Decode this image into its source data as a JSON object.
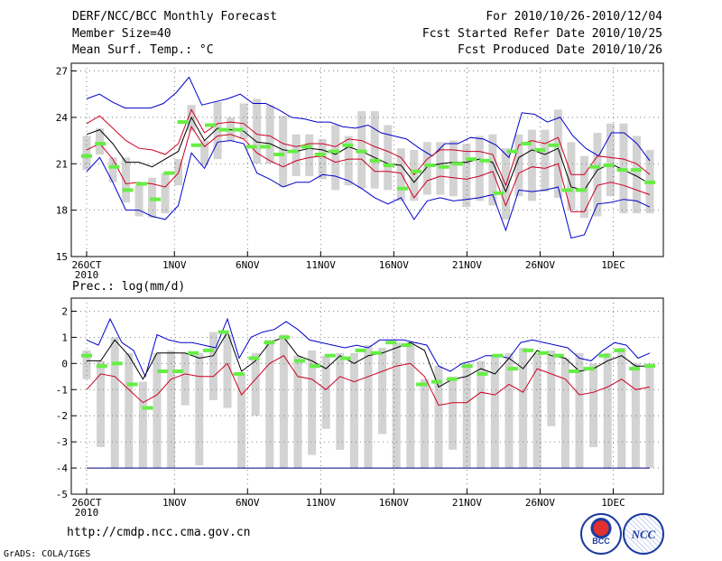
{
  "header": {
    "title": "DERF/NCC/BCC Monthly Forecast",
    "member_size": "Member Size=40",
    "variable": "Mean Surf. Temp.: °C",
    "period": "For 2010/10/26-2010/12/04",
    "start_date": "Fcst Started Refer Date 2010/10/25",
    "produced_date": "Fcst Produced Date 2010/10/26"
  },
  "footer": {
    "url": "http://cmdp.ncc.cma.gov.cn",
    "credit": "GrADS: COLA/IGES",
    "logo1_text": "BCC",
    "logo2_text": "NCC"
  },
  "colors": {
    "median": "#000000",
    "inner": "#cc0022",
    "outer": "#0000cc",
    "bar": "#d3d3d3",
    "obs": "#66ee44",
    "floor": "#000080"
  },
  "chart_data": [
    {
      "type": "line",
      "title": "Mean Surf. Temp.: °C",
      "x_ticks": [
        "26OCT",
        "1NOV",
        "6NOV",
        "11NOV",
        "16NOV",
        "21NOV",
        "26NOV",
        "1DEC"
      ],
      "x_tick_days": [
        1,
        7,
        12,
        17,
        22,
        27,
        32,
        37
      ],
      "x_sublabel": "2010",
      "ylim": [
        15,
        27.5
      ],
      "yticks": [
        15,
        18,
        21,
        24,
        27
      ],
      "days": 40,
      "series": [
        {
          "name": "upper-envelope",
          "values": [
            25.2,
            25.5,
            25.0,
            24.6,
            24.6,
            24.6,
            24.9,
            25.6,
            26.6,
            24.8,
            25.0,
            25.2,
            25.5,
            24.9,
            24.9,
            24.5,
            24.0,
            23.9,
            23.7,
            23.7,
            23.4,
            23.3,
            23.5,
            23.0,
            22.8,
            22.6,
            22.0,
            21.5,
            22.3,
            22.3,
            22.7,
            22.6,
            22.2,
            21.4,
            24.3,
            24.2,
            23.7,
            24.0,
            22.8,
            22.0,
            21.5,
            23.0,
            23.0,
            22.3,
            21.2
          ]
        },
        {
          "name": "inner-upper",
          "values": [
            23.6,
            24.1,
            23.3,
            22.5,
            22.0,
            21.9,
            21.6,
            22.3,
            24.5,
            23.0,
            23.6,
            23.7,
            23.6,
            22.9,
            22.8,
            22.3,
            22.1,
            22.3,
            22.3,
            22.1,
            22.6,
            22.5,
            22.1,
            21.8,
            21.4,
            20.3,
            21.3,
            21.9,
            21.9,
            21.8,
            21.8,
            21.6,
            19.6,
            22.2,
            22.5,
            22.3,
            22.7,
            20.3,
            20.3,
            21.5,
            21.4,
            21.3,
            21.0,
            20.3
          ]
        },
        {
          "name": "median",
          "values": [
            22.9,
            23.2,
            22.3,
            21.1,
            21.1,
            20.8,
            21.3,
            21.8,
            24.0,
            22.5,
            23.3,
            23.2,
            23.1,
            22.4,
            22.3,
            21.9,
            21.8,
            22.0,
            21.9,
            21.6,
            22.1,
            21.8,
            21.4,
            21.0,
            20.9,
            19.8,
            20.8,
            21.0,
            21.1,
            21.1,
            21.3,
            21.1,
            19.2,
            21.4,
            21.9,
            21.6,
            22.0,
            19.5,
            19.3,
            20.6,
            21.0,
            20.6,
            20.2,
            19.7
          ]
        },
        {
          "name": "inner-lower",
          "values": [
            21.9,
            22.3,
            21.3,
            19.7,
            19.8,
            19.7,
            19.5,
            20.4,
            23.4,
            22.1,
            22.8,
            22.9,
            22.6,
            21.7,
            21.2,
            20.8,
            21.2,
            21.4,
            21.5,
            21.1,
            21.3,
            21.3,
            20.5,
            20.5,
            20.4,
            18.8,
            19.9,
            20.2,
            20.1,
            20.0,
            20.2,
            20.5,
            18.3,
            20.4,
            20.8,
            20.7,
            21.0,
            17.9,
            17.9,
            19.6,
            19.8,
            19.6,
            19.3,
            19.0
          ]
        },
        {
          "name": "lower-envelope",
          "values": [
            20.5,
            21.4,
            19.8,
            18.0,
            18.0,
            17.6,
            17.4,
            18.3,
            21.7,
            20.7,
            22.4,
            22.5,
            22.3,
            20.4,
            20.0,
            19.5,
            19.8,
            19.8,
            20.3,
            20.2,
            19.9,
            19.4,
            18.8,
            18.4,
            18.8,
            17.4,
            18.6,
            18.8,
            18.6,
            18.7,
            18.8,
            19.0,
            16.7,
            19.3,
            19.2,
            19.3,
            19.5,
            16.2,
            16.4,
            18.4,
            18.5,
            18.7,
            18.6,
            18.2
          ]
        }
      ],
      "bars": [
        [
          20.6,
          22.8
        ],
        [
          21.6,
          23.3
        ],
        [
          19.8,
          21.4
        ],
        [
          18.5,
          21.4
        ],
        [
          17.6,
          19.6
        ],
        [
          17.5,
          20.1
        ],
        [
          17.8,
          20.4
        ],
        [
          19.6,
          21.3
        ],
        [
          23.1,
          24.8
        ],
        [
          20.9,
          22.5
        ],
        [
          21.3,
          25.0
        ],
        [
          22.5,
          24.0
        ],
        [
          22.6,
          24.9
        ],
        [
          21.0,
          25.2
        ],
        [
          21.0,
          24.8
        ],
        [
          19.5,
          24.1
        ],
        [
          20.2,
          22.9
        ],
        [
          20.2,
          22.9
        ],
        [
          20.0,
          22.6
        ],
        [
          19.3,
          23.5
        ],
        [
          19.6,
          22.8
        ],
        [
          19.4,
          24.4
        ],
        [
          19.4,
          24.4
        ],
        [
          19.3,
          23.5
        ],
        [
          18.6,
          22.0
        ],
        [
          18.6,
          21.9
        ],
        [
          19.0,
          22.4
        ],
        [
          19.0,
          22.4
        ],
        [
          18.9,
          22.5
        ],
        [
          18.2,
          22.3
        ],
        [
          18.6,
          22.8
        ],
        [
          18.3,
          22.9
        ],
        [
          17.4,
          22.0
        ],
        [
          18.9,
          22.9
        ],
        [
          18.6,
          23.2
        ],
        [
          19.2,
          23.2
        ],
        [
          18.8,
          24.5
        ],
        [
          18.0,
          22.4
        ],
        [
          17.5,
          21.5
        ],
        [
          17.6,
          23.0
        ],
        [
          18.9,
          23.6
        ],
        [
          17.8,
          23.6
        ],
        [
          17.8,
          22.8
        ],
        [
          17.8,
          21.9
        ]
      ],
      "observed": [
        21.5,
        22.3,
        20.8,
        19.3,
        19.7,
        18.7,
        20.4,
        23.7,
        22.2,
        23.5,
        23.2,
        23.2,
        22.1,
        22.1,
        21.6,
        21.8,
        22.1,
        21.6,
        21.8,
        22.2,
        21.8,
        21.2,
        20.9,
        19.4,
        20.5,
        20.9,
        20.8,
        21.0,
        21.3,
        21.2,
        19.1,
        21.8,
        22.3,
        21.9,
        22.2,
        19.3,
        19.3,
        20.8,
        20.9,
        20.6,
        20.6,
        19.8
      ]
    },
    {
      "type": "line",
      "title": "Prec.: log(mm/d)",
      "x_ticks": [
        "26OCT",
        "1NOV",
        "6NOV",
        "11NOV",
        "16NOV",
        "21NOV",
        "26NOV",
        "1DEC"
      ],
      "x_tick_days": [
        1,
        7,
        12,
        17,
        22,
        27,
        32,
        37
      ],
      "x_sublabel": "2010",
      "ylim": [
        -5,
        2.5
      ],
      "yticks": [
        -5,
        -4,
        -3,
        -2,
        -1,
        0,
        1,
        2
      ],
      "floor_value": -4,
      "series": [
        {
          "name": "upper-envelope",
          "values": [
            0.9,
            0.7,
            1.7,
            0.8,
            0.5,
            -0.5,
            1.1,
            0.9,
            0.8,
            0.8,
            0.7,
            0.6,
            1.7,
            0.2,
            1.0,
            1.2,
            1.3,
            1.6,
            1.3,
            0.9,
            0.8,
            0.7,
            0.6,
            0.7,
            0.6,
            0.9,
            0.9,
            0.9,
            0.8,
            0.7,
            -0.1,
            -0.3,
            0.0,
            0.1,
            0.3,
            0.3,
            0.2,
            0.8,
            0.9,
            0.8,
            0.7,
            0.6,
            0.2,
            0.1,
            0.5,
            0.8,
            0.7,
            0.2,
            0.4
          ]
        },
        {
          "name": "median",
          "values": [
            0.1,
            0.1,
            0.9,
            0.3,
            -0.6,
            0.4,
            0.4,
            0.4,
            0.2,
            0.3,
            1.2,
            -0.3,
            0.1,
            0.8,
            1.0,
            0.3,
            0.1,
            -0.2,
            0.3,
            0.0,
            0.3,
            0.4,
            0.6,
            0.8,
            0.5,
            -0.9,
            -0.6,
            -0.5,
            -0.2,
            -0.4,
            0.2,
            -0.2,
            0.5,
            0.3,
            0.2,
            -0.3,
            -0.2,
            0.1,
            0.3,
            -0.1,
            -0.1
          ]
        },
        {
          "name": "inner-lower",
          "values": [
            -1.0,
            -0.4,
            -0.5,
            -1.0,
            -1.5,
            -1.2,
            -0.6,
            -0.4,
            -0.5,
            -0.5,
            0.0,
            -1.2,
            -0.6,
            0.0,
            0.3,
            -0.5,
            -0.6,
            -1.0,
            -0.5,
            -0.7,
            -0.5,
            -0.3,
            -0.1,
            0.0,
            -0.5,
            -1.6,
            -1.5,
            -1.5,
            -1.1,
            -1.2,
            -0.8,
            -1.1,
            -0.2,
            -0.4,
            -0.6,
            -1.2,
            -1.1,
            -0.9,
            -0.6,
            -1.0,
            -0.9
          ]
        }
      ],
      "bars": [
        [
          -0.6,
          0.5
        ],
        [
          -3.2,
          0.1
        ],
        [
          -4.0,
          1.0
        ],
        [
          -4.0,
          0.4
        ],
        [
          -4.0,
          -0.7
        ],
        [
          -4.0,
          0.4
        ],
        [
          -4.0,
          0.5
        ],
        [
          -1.6,
          0.4
        ],
        [
          -3.9,
          0.4
        ],
        [
          -1.4,
          1.2
        ],
        [
          -1.7,
          1.1
        ],
        [
          -4.0,
          -0.4
        ],
        [
          -2.0,
          0.4
        ],
        [
          -4.0,
          0.9
        ],
        [
          -4.0,
          1.1
        ],
        [
          -4.0,
          0.3
        ],
        [
          -3.5,
          0.5
        ],
        [
          -2.5,
          0.3
        ],
        [
          -3.3,
          0.4
        ],
        [
          -4.0,
          0.4
        ],
        [
          -4.0,
          0.7
        ],
        [
          -2.7,
          0.6
        ],
        [
          -4.0,
          0.8
        ],
        [
          -4.0,
          0.8
        ],
        [
          -4.0,
          -0.6
        ],
        [
          -4.0,
          -0.1
        ],
        [
          -3.3,
          -0.5
        ],
        [
          -4.0,
          0.0
        ],
        [
          -4.0,
          0.1
        ],
        [
          -4.0,
          0.3
        ],
        [
          -4.0,
          0.4
        ],
        [
          -4.0,
          0.6
        ],
        [
          -4.0,
          0.4
        ],
        [
          -2.4,
          0.5
        ],
        [
          -4.0,
          0.2
        ],
        [
          -4.0,
          0.4
        ],
        [
          -3.2,
          0.0
        ],
        [
          -4.0,
          0.4
        ],
        [
          -4.0,
          0.6
        ],
        [
          -4.0,
          0.0
        ],
        [
          -4.0,
          0.0
        ]
      ],
      "observed": [
        0.3,
        -0.1,
        0.0,
        -0.8,
        -1.7,
        -0.3,
        -0.3,
        0.4,
        0.5,
        1.2,
        -0.4,
        0.2,
        0.8,
        1.0,
        0.1,
        -0.1,
        0.3,
        0.2,
        0.5,
        0.4,
        0.8,
        0.7,
        -0.8,
        -0.7,
        -0.6,
        -0.1,
        -0.4,
        0.3,
        -0.2,
        0.5,
        0.4,
        0.3,
        -0.3,
        -0.2,
        0.3,
        0.5,
        -0.2,
        -0.1
      ]
    }
  ]
}
